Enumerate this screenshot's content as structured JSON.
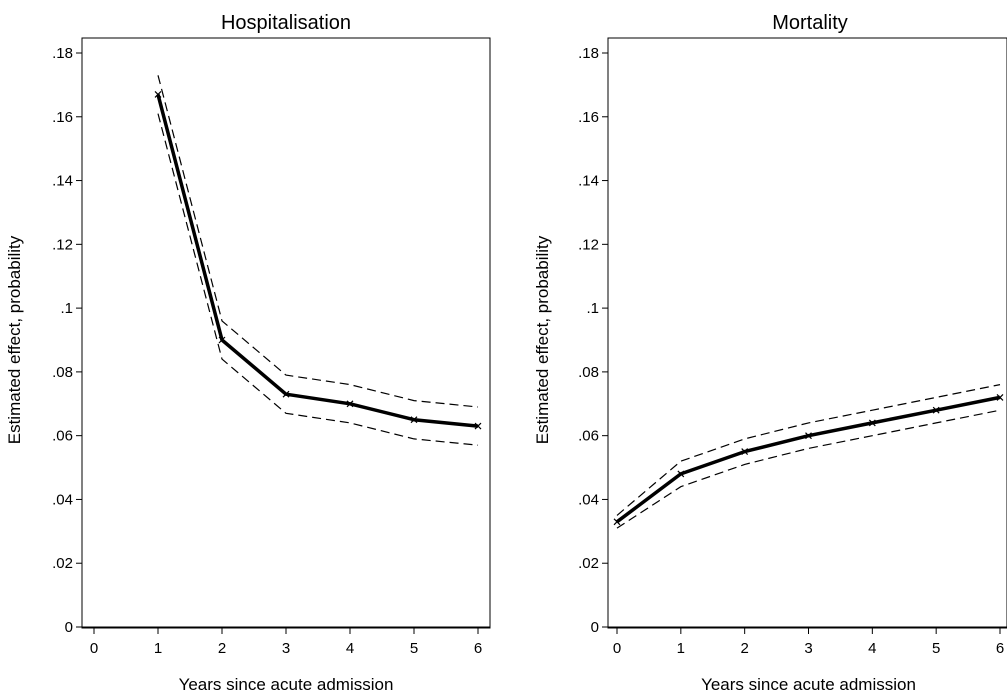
{
  "chart_data": [
    {
      "type": "line",
      "title": "Hospitalisation",
      "xlabel": "Years since acute admission",
      "ylabel": "Estimated effect, probability",
      "xlim": [
        0,
        6
      ],
      "ylim": [
        0,
        0.18
      ],
      "x_ticks": [
        0,
        1,
        2,
        3,
        4,
        5,
        6
      ],
      "x_tick_labels": [
        "0",
        "1",
        "2",
        "3",
        "4",
        "5",
        "6"
      ],
      "y_ticks": [
        0,
        0.02,
        0.04,
        0.06,
        0.08,
        0.1,
        0.12,
        0.14,
        0.16,
        0.18
      ],
      "y_tick_labels": [
        "0",
        ".02",
        ".04",
        ".06",
        ".08",
        ".1",
        ".12",
        ".14",
        ".16",
        ".18"
      ],
      "grid": false,
      "series": [
        {
          "role": "estimate",
          "x": [
            1,
            2,
            3,
            4,
            5,
            6
          ],
          "values": [
            0.167,
            0.09,
            0.073,
            0.07,
            0.065,
            0.063
          ]
        },
        {
          "role": "upper",
          "x": [
            1,
            2,
            3,
            4,
            5,
            6
          ],
          "values": [
            0.173,
            0.096,
            0.079,
            0.076,
            0.071,
            0.069
          ]
        },
        {
          "role": "lower",
          "x": [
            1,
            2,
            3,
            4,
            5,
            6
          ],
          "values": [
            0.161,
            0.084,
            0.067,
            0.064,
            0.059,
            0.057
          ]
        }
      ]
    },
    {
      "type": "line",
      "title": "Mortality",
      "xlabel": "Years since acute admission",
      "ylabel": "Estimated effect, probability",
      "xlim": [
        0,
        6
      ],
      "ylim": [
        0,
        0.18
      ],
      "x_ticks": [
        0,
        1,
        2,
        3,
        4,
        5,
        6
      ],
      "x_tick_labels": [
        "0",
        "1",
        "2",
        "3",
        "4",
        "5",
        "6"
      ],
      "y_ticks": [
        0,
        0.02,
        0.04,
        0.06,
        0.08,
        0.1,
        0.12,
        0.14,
        0.16,
        0.18
      ],
      "y_tick_labels": [
        "0",
        ".02",
        ".04",
        ".06",
        ".08",
        ".1",
        ".12",
        ".14",
        ".16",
        ".18"
      ],
      "grid": false,
      "series": [
        {
          "role": "estimate",
          "x": [
            0,
            1,
            2,
            3,
            4,
            5,
            6
          ],
          "values": [
            0.033,
            0.048,
            0.055,
            0.06,
            0.064,
            0.068,
            0.072
          ]
        },
        {
          "role": "upper",
          "x": [
            0,
            1,
            2,
            3,
            4,
            5,
            6
          ],
          "values": [
            0.035,
            0.052,
            0.059,
            0.064,
            0.068,
            0.072,
            0.076
          ]
        },
        {
          "role": "lower",
          "x": [
            0,
            1,
            2,
            3,
            4,
            5,
            6
          ],
          "values": [
            0.031,
            0.044,
            0.051,
            0.056,
            0.06,
            0.064,
            0.068
          ]
        }
      ]
    }
  ]
}
